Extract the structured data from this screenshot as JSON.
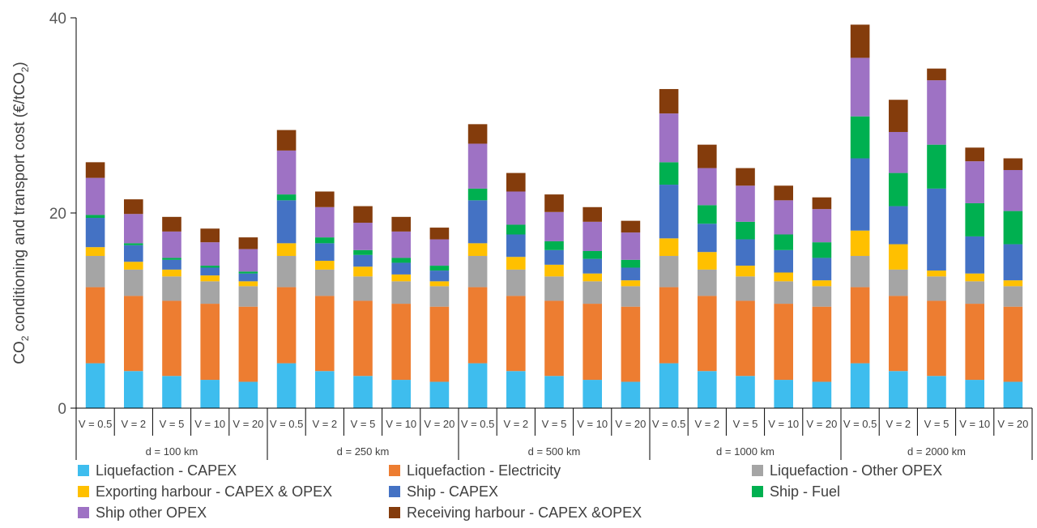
{
  "chart_data": {
    "type": "bar",
    "stacked": true,
    "ylabel_parts": [
      "CO",
      "2",
      " conditioning and transport cost (€/tCO",
      "2",
      ")"
    ],
    "ylim": [
      0,
      40
    ],
    "yticks": [
      "0",
      "20",
      "40"
    ],
    "groups": [
      {
        "label": "d = 100 km",
        "categories": [
          "V = 0.5",
          "V = 2",
          "V = 5",
          "V = 10",
          "V = 20"
        ]
      },
      {
        "label": "d = 250 km",
        "categories": [
          "V = 0.5",
          "V = 2",
          "V = 5",
          "V = 10",
          "V = 20"
        ]
      },
      {
        "label": "d = 500 km",
        "categories": [
          "V = 0.5",
          "V = 2",
          "V = 5",
          "V = 10",
          "V = 20"
        ]
      },
      {
        "label": "d = 1000 km",
        "categories": [
          "V = 0.5",
          "V = 2",
          "V = 5",
          "V = 10",
          "V = 20"
        ]
      },
      {
        "label": "d = 2000 km",
        "categories": [
          "V = 0.5",
          "V = 2",
          "V = 5",
          "V = 10",
          "V = 20"
        ]
      }
    ],
    "series": [
      {
        "name": "Liquefaction - CAPEX",
        "color": "#3EBDEE",
        "values": [
          4.6,
          3.8,
          3.3,
          2.9,
          2.7,
          4.6,
          3.8,
          3.3,
          2.9,
          2.7,
          4.6,
          3.8,
          3.3,
          2.9,
          2.7,
          4.6,
          3.8,
          3.3,
          2.9,
          2.7,
          4.6,
          3.8,
          3.3,
          2.9,
          2.7
        ]
      },
      {
        "name": "Liquefaction - Electricity",
        "color": "#ED7D31",
        "values": [
          7.8,
          7.7,
          7.7,
          7.8,
          7.7,
          7.8,
          7.7,
          7.7,
          7.8,
          7.7,
          7.8,
          7.7,
          7.7,
          7.8,
          7.7,
          7.8,
          7.7,
          7.7,
          7.8,
          7.7,
          7.8,
          7.7,
          7.7,
          7.8,
          7.7
        ]
      },
      {
        "name": "Liquefaction - Other OPEX",
        "color": "#A5A5A5",
        "values": [
          3.2,
          2.7,
          2.5,
          2.3,
          2.1,
          3.2,
          2.7,
          2.5,
          2.3,
          2.1,
          3.2,
          2.7,
          2.5,
          2.3,
          2.1,
          3.2,
          2.7,
          2.5,
          2.3,
          2.1,
          3.2,
          2.7,
          2.5,
          2.3,
          2.1
        ]
      },
      {
        "name": "Exporting harbour - CAPEX & OPEX",
        "color": "#FFC000",
        "values": [
          0.9,
          0.8,
          0.7,
          0.6,
          0.5,
          1.3,
          0.9,
          1.0,
          0.7,
          0.5,
          1.3,
          1.3,
          1.2,
          0.8,
          0.6,
          1.8,
          1.8,
          1.1,
          0.9,
          0.6,
          2.6,
          2.6,
          0.6,
          0.8,
          0.6
        ]
      },
      {
        "name": "Ship - CAPEX",
        "color": "#4472C4",
        "values": [
          3.0,
          1.7,
          1.0,
          0.8,
          0.8,
          4.4,
          1.8,
          1.2,
          1.2,
          1.1,
          4.4,
          2.3,
          1.5,
          1.5,
          1.3,
          5.5,
          2.9,
          2.7,
          2.3,
          2.3,
          7.4,
          3.9,
          8.4,
          3.8,
          3.7
        ]
      },
      {
        "name": "Ship - Fuel",
        "color": "#00B050",
        "values": [
          0.3,
          0.2,
          0.2,
          0.2,
          0.2,
          0.6,
          0.6,
          0.5,
          0.5,
          0.5,
          1.2,
          1.0,
          0.9,
          0.8,
          0.8,
          2.3,
          1.9,
          1.8,
          1.6,
          1.6,
          4.3,
          3.4,
          4.5,
          3.4,
          3.4
        ]
      },
      {
        "name": "Ship other OPEX",
        "color": "#9E72C4",
        "values": [
          3.8,
          3.0,
          2.7,
          2.4,
          2.3,
          4.5,
          3.1,
          2.8,
          2.7,
          2.7,
          4.6,
          3.4,
          3.0,
          3.0,
          2.8,
          5.0,
          3.8,
          3.7,
          3.5,
          3.4,
          6.0,
          4.2,
          6.6,
          4.3,
          4.2
        ]
      },
      {
        "name": "Receiving harbour - CAPEX &OPEX",
        "color": "#843C0C",
        "values": [
          1.6,
          1.5,
          1.5,
          1.4,
          1.2,
          2.1,
          1.6,
          1.7,
          1.5,
          1.2,
          2.0,
          1.9,
          1.8,
          1.5,
          1.2,
          2.5,
          2.4,
          1.8,
          1.5,
          1.2,
          3.4,
          3.3,
          1.2,
          1.4,
          1.2
        ]
      }
    ],
    "legend_position": "bottom",
    "grid": false
  }
}
